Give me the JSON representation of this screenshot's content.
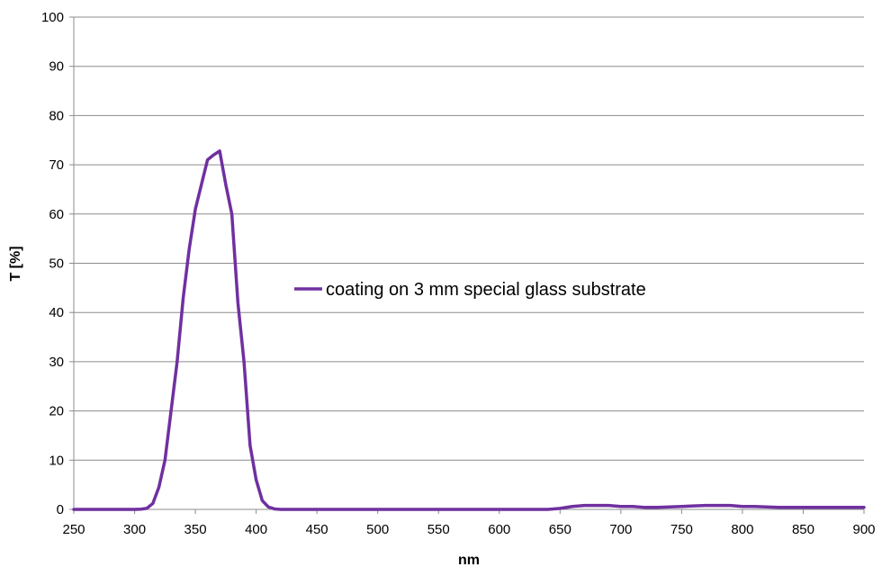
{
  "chart_data": {
    "type": "line",
    "xlabel": "nm",
    "ylabel": "T [%]",
    "xlim": [
      250,
      900
    ],
    "ylim": [
      0,
      100
    ],
    "xticks": [
      250,
      300,
      350,
      400,
      450,
      500,
      550,
      600,
      650,
      700,
      750,
      800,
      850,
      900
    ],
    "yticks": [
      0,
      10,
      20,
      30,
      40,
      50,
      60,
      70,
      80,
      90,
      100
    ],
    "grid": "horizontal",
    "legend_position": "center",
    "series": [
      {
        "name": "coating on 3 mm special glass substrate",
        "color": "#7030a0",
        "x": [
          250,
          260,
          270,
          280,
          290,
          300,
          305,
          310,
          315,
          320,
          325,
          330,
          335,
          340,
          345,
          350,
          355,
          360,
          365,
          370,
          375,
          380,
          385,
          390,
          395,
          400,
          405,
          410,
          415,
          420,
          450,
          500,
          550,
          600,
          640,
          650,
          660,
          670,
          680,
          690,
          700,
          710,
          720,
          730,
          740,
          750,
          760,
          770,
          780,
          790,
          800,
          810,
          820,
          830,
          850,
          875,
          900
        ],
        "y": [
          0,
          0,
          0,
          0,
          0,
          0,
          0.05,
          0.2,
          1.2,
          4.5,
          10,
          20,
          30,
          43,
          53,
          61,
          66,
          71,
          72,
          72.8,
          66,
          60,
          42,
          30,
          13,
          6,
          1.8,
          0.5,
          0.1,
          0,
          0,
          0,
          0,
          0,
          0,
          0.2,
          0.6,
          0.8,
          0.8,
          0.8,
          0.6,
          0.6,
          0.4,
          0.4,
          0.5,
          0.6,
          0.7,
          0.8,
          0.8,
          0.8,
          0.6,
          0.6,
          0.5,
          0.4,
          0.4,
          0.4,
          0.4
        ]
      }
    ]
  }
}
